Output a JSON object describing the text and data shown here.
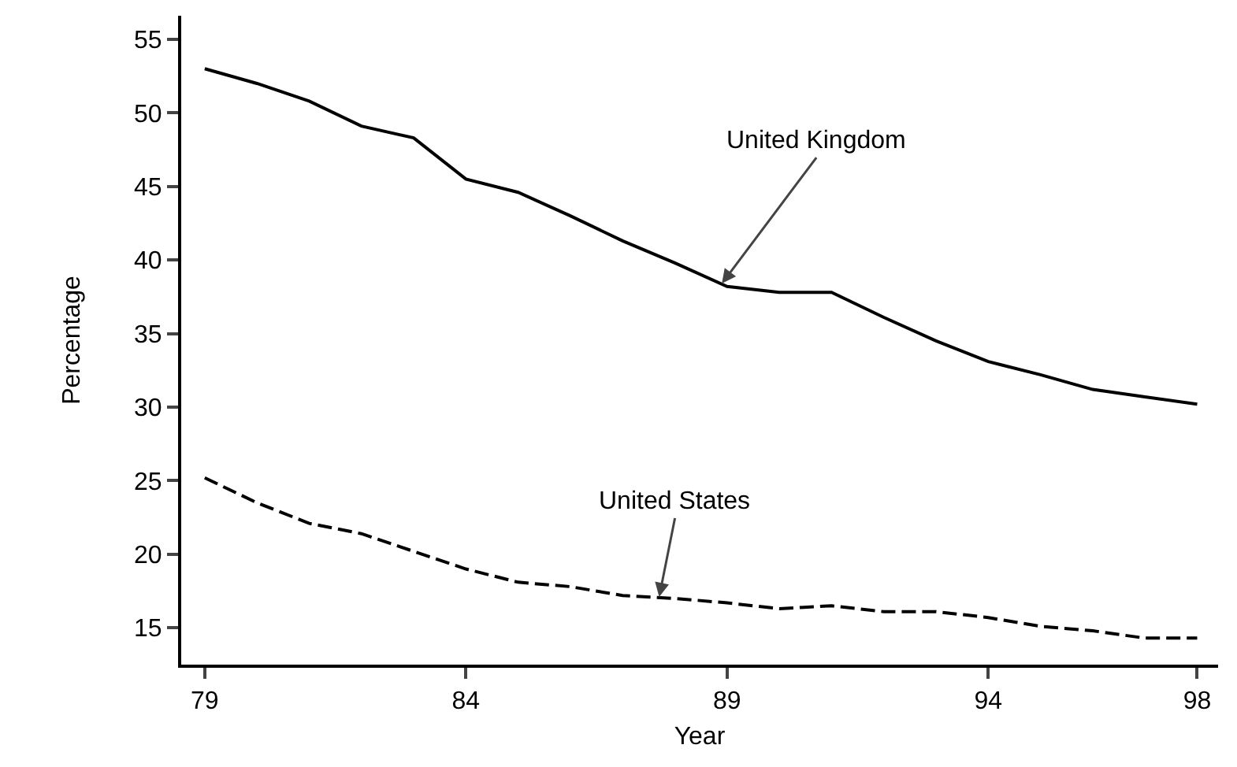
{
  "chart_data": {
    "type": "line",
    "xlabel": "Year",
    "ylabel": "Percentage",
    "x": [
      79,
      80,
      81,
      82,
      83,
      84,
      85,
      86,
      87,
      88,
      89,
      90,
      91,
      92,
      93,
      94,
      95,
      96,
      97,
      98
    ],
    "series": [
      {
        "color": "#000000",
        "line_style": "solid",
        "values": [
          53.0,
          52.0,
          50.8,
          49.1,
          48.3,
          45.5,
          44.6,
          43.0,
          41.3,
          39.8,
          38.2,
          37.8,
          37.8,
          36.1,
          34.5,
          33.1,
          32.2,
          31.2,
          30.7,
          30.2
        ]
      },
      {
        "color": "#000000",
        "line_style": "dashed",
        "values": [
          25.2,
          23.5,
          22.1,
          21.4,
          20.2,
          19.0,
          18.1,
          17.8,
          17.2,
          17.0,
          16.7,
          16.3,
          16.5,
          16.1,
          16.1,
          15.7,
          15.1,
          14.8,
          14.3,
          14.3
        ]
      }
    ],
    "annotations": [
      {
        "text": "United Kingdom",
        "x": 88.9,
        "y": 38.4
      },
      {
        "text": "United States",
        "x": 87.7,
        "y": 17.1
      }
    ],
    "xlim": [
      78.55,
      98.4
    ],
    "xticks": [
      79,
      84,
      89,
      94,
      98
    ],
    "ylim": [
      12.5,
      56.6
    ],
    "yticks": [
      15,
      20,
      25,
      30,
      35,
      40,
      45,
      50,
      55
    ],
    "grid": false,
    "marker": "none"
  }
}
